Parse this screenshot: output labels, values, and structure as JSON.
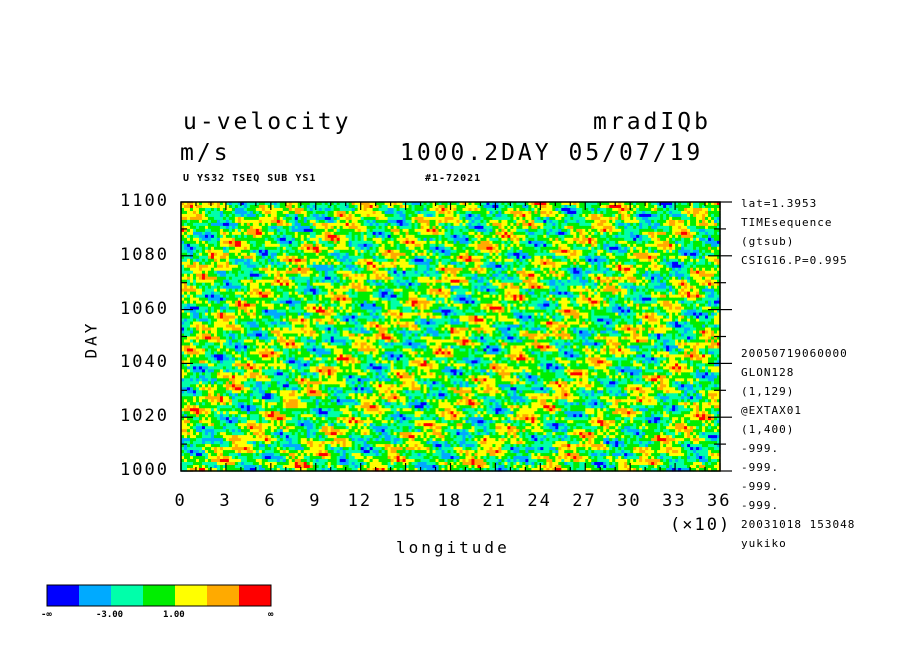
{
  "header": {
    "title_left": "u-velocity",
    "title_right": "mradIQb",
    "units": "m/s",
    "time_label": "1000.2DAY 05/07/19",
    "subtitle_left": "U YS32 TSEQ SUB YS1",
    "subtitle_mid": "#1-72021"
  },
  "side_info": {
    "top": [
      "lat=1.3953",
      "TIMEsequence",
      "(gtsub)",
      "CSIG16.P=0.995"
    ],
    "bottom": [
      "20050719060000",
      "GLON128",
      "(1,129)",
      "@EXTAX01",
      "(1,400)",
      "-999.",
      "-999.",
      "-999.",
      "-999.",
      "20031018 153048",
      "yukiko"
    ]
  },
  "colorbar": {
    "colors": [
      "#0000ff",
      "#00aaff",
      "#00ffaa",
      "#00ee00",
      "#ffff00",
      "#ffaa00",
      "#ff0000"
    ],
    "labels": [
      "-∞",
      "-3.00",
      "1.00",
      "∞"
    ]
  },
  "chart_data": {
    "type": "heatmap",
    "title": "u-velocity",
    "xlabel": "longitude",
    "ylabel": "DAY",
    "x_multiplier": "(×10)",
    "xlim": [
      0,
      36
    ],
    "ylim": [
      1000,
      1100
    ],
    "x_ticks": [
      "0",
      "3",
      "6",
      "9",
      "12",
      "15",
      "18",
      "21",
      "24",
      "27",
      "30",
      "33",
      "36"
    ],
    "y_ticks": [
      "1000",
      "1020",
      "1040",
      "1060",
      "1080",
      "1100"
    ],
    "levels": [
      -3.0,
      1.0
    ],
    "field": "u-velocity time sequence (noisy), values shown by color classes"
  }
}
